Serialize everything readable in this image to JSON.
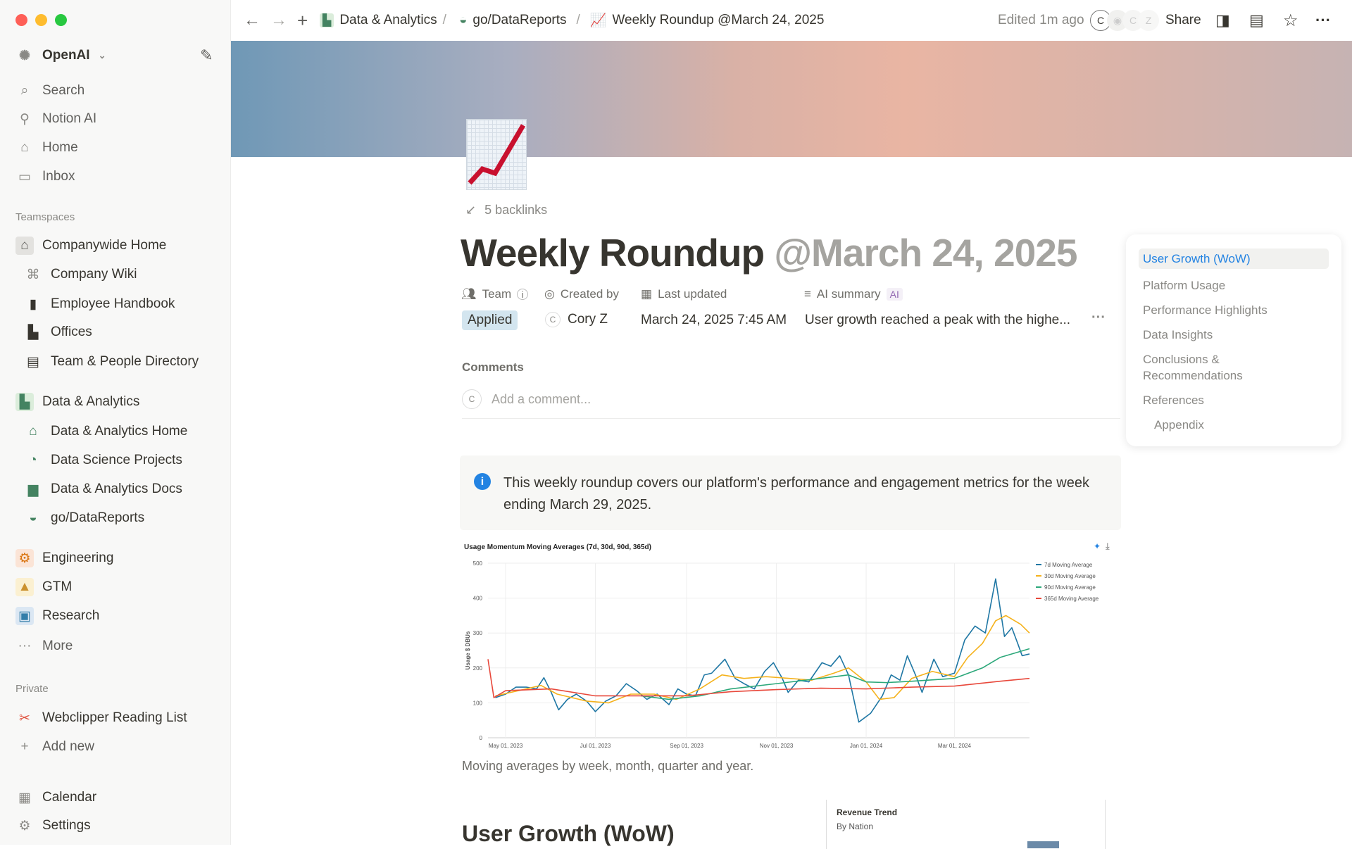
{
  "sidebar": {
    "workspace": "OpenAI",
    "nav": [
      {
        "label": "Search",
        "icon": "search-icon"
      },
      {
        "label": "Notion AI",
        "icon": "notion-ai-icon"
      },
      {
        "label": "Home",
        "icon": "home-icon"
      },
      {
        "label": "Inbox",
        "icon": "inbox-icon"
      }
    ],
    "teamspaces_label": "Teamspaces",
    "companywide": {
      "label": "Companywide Home",
      "items": [
        "Company Wiki",
        "Employee Handbook",
        "Offices",
        "Team & People Directory"
      ]
    },
    "data_analytics": {
      "label": "Data & Analytics",
      "items": [
        "Data & Analytics Home",
        "Data Science Projects",
        "Data & Analytics Docs",
        "go/DataReports"
      ]
    },
    "teams": [
      "Engineering",
      "GTM",
      "Research"
    ],
    "more": "More",
    "private_label": "Private",
    "private_items": [
      "Webclipper Reading List"
    ],
    "add_new": "Add new",
    "calendar": "Calendar",
    "settings": "Settings"
  },
  "topbar": {
    "breadcrumbs": [
      "Data & Analytics",
      "go/DataReports",
      "Weekly Roundup @March 24, 2025"
    ],
    "edited": "Edited 1m ago",
    "avatars": [
      "C",
      "C",
      "Z"
    ],
    "share": "Share"
  },
  "page": {
    "backlinks": "5 backlinks",
    "title": "Weekly Roundup",
    "title_date": "@March 24, 2025",
    "properties": {
      "team_label": "Team",
      "team_value": "Applied",
      "created_label": "Created by",
      "created_value": "Cory Z",
      "created_initial": "C",
      "updated_label": "Last updated",
      "updated_value": "March 24, 2025 7:45 AM",
      "ai_label": "AI summary",
      "ai_badge": "AI",
      "ai_value": "User growth reached a peak with the highe..."
    },
    "comments_label": "Comments",
    "comment_initial": "C",
    "comment_placeholder": "Add a comment...",
    "callout": "This weekly roundup covers our platform's performance and engagement metrics for the week ending March 29, 2025.",
    "caption": "Moving averages by week, month, quarter and year.",
    "section_heading": "User Growth (WoW)",
    "card": {
      "title": "Revenue Trend",
      "subtitle": "By Nation"
    }
  },
  "toc": [
    "User Growth (WoW)",
    "Platform Usage",
    "Performance Highlights",
    "Data Insights",
    "Conclusions & Recommendations",
    "References",
    "Appendix"
  ],
  "chart_data": {
    "type": "line",
    "title": "Usage Momentum Moving Averages (7d, 30d, 90d, 365d)",
    "xlabel": "",
    "ylabel": "Usage $ DBUs",
    "ylim": [
      0,
      500
    ],
    "yticks": [
      0,
      100,
      200,
      300,
      400,
      500
    ],
    "xlim": [
      "2023-04-19",
      "2024-04-21"
    ],
    "xticks": [
      {
        "date": "2023-05-01",
        "label": "May 01, 2023"
      },
      {
        "date": "2023-07-01",
        "label": "Jul 01, 2023"
      },
      {
        "date": "2023-09-01",
        "label": "Sep 01, 2023"
      },
      {
        "date": "2023-11-01",
        "label": "Nov 01, 2023"
      },
      {
        "date": "2024-01-01",
        "label": "Jan 01, 2024"
      },
      {
        "date": "2024-03-01",
        "label": "Mar 01, 2024"
      }
    ],
    "grid": true,
    "legend": "top-right",
    "series": [
      {
        "name": "7d Moving Average",
        "color": "#1f77a4",
        "points": [
          [
            "2023-04-24",
            115
          ],
          [
            "2023-05-01",
            125
          ],
          [
            "2023-05-08",
            145
          ],
          [
            "2023-05-15",
            145
          ],
          [
            "2023-05-22",
            140
          ],
          [
            "2023-05-27",
            172
          ],
          [
            "2023-06-01",
            130
          ],
          [
            "2023-06-06",
            80
          ],
          [
            "2023-06-12",
            110
          ],
          [
            "2023-06-18",
            125
          ],
          [
            "2023-06-25",
            105
          ],
          [
            "2023-07-01",
            75
          ],
          [
            "2023-07-08",
            105
          ],
          [
            "2023-07-15",
            120
          ],
          [
            "2023-07-22",
            155
          ],
          [
            "2023-07-29",
            135
          ],
          [
            "2023-08-05",
            110
          ],
          [
            "2023-08-12",
            125
          ],
          [
            "2023-08-20",
            95
          ],
          [
            "2023-08-26",
            140
          ],
          [
            "2023-09-01",
            125
          ],
          [
            "2023-09-07",
            120
          ],
          [
            "2023-09-13",
            180
          ],
          [
            "2023-09-18",
            185
          ],
          [
            "2023-09-27",
            225
          ],
          [
            "2023-10-04",
            170
          ],
          [
            "2023-10-10",
            155
          ],
          [
            "2023-10-17",
            140
          ],
          [
            "2023-10-24",
            190
          ],
          [
            "2023-10-30",
            215
          ],
          [
            "2023-11-05",
            170
          ],
          [
            "2023-11-09",
            130
          ],
          [
            "2023-11-16",
            165
          ],
          [
            "2023-11-23",
            160
          ],
          [
            "2023-12-02",
            215
          ],
          [
            "2023-12-08",
            205
          ],
          [
            "2023-12-14",
            235
          ],
          [
            "2023-12-20",
            180
          ],
          [
            "2023-12-27",
            45
          ],
          [
            "2024-01-04",
            70
          ],
          [
            "2024-01-12",
            120
          ],
          [
            "2024-01-18",
            180
          ],
          [
            "2024-01-24",
            165
          ],
          [
            "2024-01-29",
            235
          ],
          [
            "2024-02-04",
            175
          ],
          [
            "2024-02-08",
            130
          ],
          [
            "2024-02-16",
            225
          ],
          [
            "2024-02-22",
            175
          ],
          [
            "2024-03-01",
            185
          ],
          [
            "2024-03-08",
            280
          ],
          [
            "2024-03-15",
            320
          ],
          [
            "2024-03-22",
            300
          ],
          [
            "2024-03-29",
            455
          ],
          [
            "2024-04-04",
            290
          ],
          [
            "2024-04-09",
            315
          ],
          [
            "2024-04-13",
            270
          ],
          [
            "2024-04-16",
            235
          ],
          [
            "2024-04-21",
            240
          ]
        ]
      },
      {
        "name": "30d Moving Average",
        "color": "#f5b21c",
        "points": [
          [
            "2023-04-24",
            120
          ],
          [
            "2023-05-15",
            140
          ],
          [
            "2023-05-25",
            150
          ],
          [
            "2023-06-05",
            125
          ],
          [
            "2023-06-25",
            105
          ],
          [
            "2023-07-10",
            100
          ],
          [
            "2023-07-25",
            125
          ],
          [
            "2023-08-10",
            125
          ],
          [
            "2023-08-25",
            110
          ],
          [
            "2023-09-10",
            140
          ],
          [
            "2023-09-25",
            180
          ],
          [
            "2023-10-10",
            170
          ],
          [
            "2023-10-25",
            175
          ],
          [
            "2023-11-10",
            170
          ],
          [
            "2023-11-25",
            165
          ],
          [
            "2023-12-10",
            185
          ],
          [
            "2023-12-20",
            200
          ],
          [
            "2024-01-01",
            160
          ],
          [
            "2024-01-10",
            110
          ],
          [
            "2024-01-20",
            115
          ],
          [
            "2024-02-01",
            170
          ],
          [
            "2024-02-15",
            190
          ],
          [
            "2024-03-01",
            175
          ],
          [
            "2024-03-10",
            230
          ],
          [
            "2024-03-20",
            270
          ],
          [
            "2024-03-29",
            335
          ],
          [
            "2024-04-05",
            350
          ],
          [
            "2024-04-15",
            325
          ],
          [
            "2024-04-21",
            300
          ]
        ]
      },
      {
        "name": "90d Moving Average",
        "color": "#2ca87a",
        "points": [
          [
            "2023-08-01",
            120
          ],
          [
            "2023-08-20",
            110
          ],
          [
            "2023-09-10",
            120
          ],
          [
            "2023-10-01",
            140
          ],
          [
            "2023-11-01",
            155
          ],
          [
            "2023-12-01",
            170
          ],
          [
            "2023-12-20",
            180
          ],
          [
            "2024-01-01",
            160
          ],
          [
            "2024-01-15",
            158
          ],
          [
            "2024-02-01",
            162
          ],
          [
            "2024-03-01",
            170
          ],
          [
            "2024-03-20",
            200
          ],
          [
            "2024-04-01",
            230
          ],
          [
            "2024-04-21",
            255
          ]
        ]
      },
      {
        "name": "365d Moving Average",
        "color": "#e8483b",
        "points": [
          [
            "2023-04-19",
            225
          ],
          [
            "2023-04-23",
            115
          ],
          [
            "2023-05-01",
            135
          ],
          [
            "2023-06-01",
            140
          ],
          [
            "2023-07-01",
            120
          ],
          [
            "2023-08-01",
            120
          ],
          [
            "2023-09-01",
            120
          ],
          [
            "2023-10-01",
            132
          ],
          [
            "2023-11-01",
            138
          ],
          [
            "2023-12-01",
            142
          ],
          [
            "2024-01-01",
            140
          ],
          [
            "2024-02-01",
            145
          ],
          [
            "2024-03-01",
            148
          ],
          [
            "2024-04-01",
            162
          ],
          [
            "2024-04-21",
            170
          ]
        ]
      }
    ]
  }
}
